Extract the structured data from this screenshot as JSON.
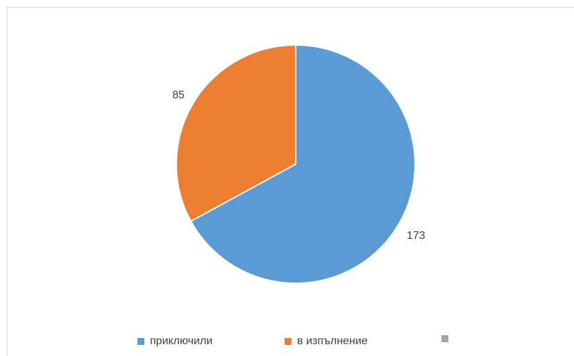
{
  "chart_data": {
    "type": "pie",
    "categories": [
      "приключили",
      "в изпълнение",
      ""
    ],
    "values": [
      173,
      85,
      0
    ],
    "data_labels": [
      "173",
      "85",
      ""
    ],
    "colors": [
      "#5B9BD5",
      "#ED7D31",
      "#A5A5A5"
    ],
    "title": "",
    "legend_position": "bottom"
  }
}
